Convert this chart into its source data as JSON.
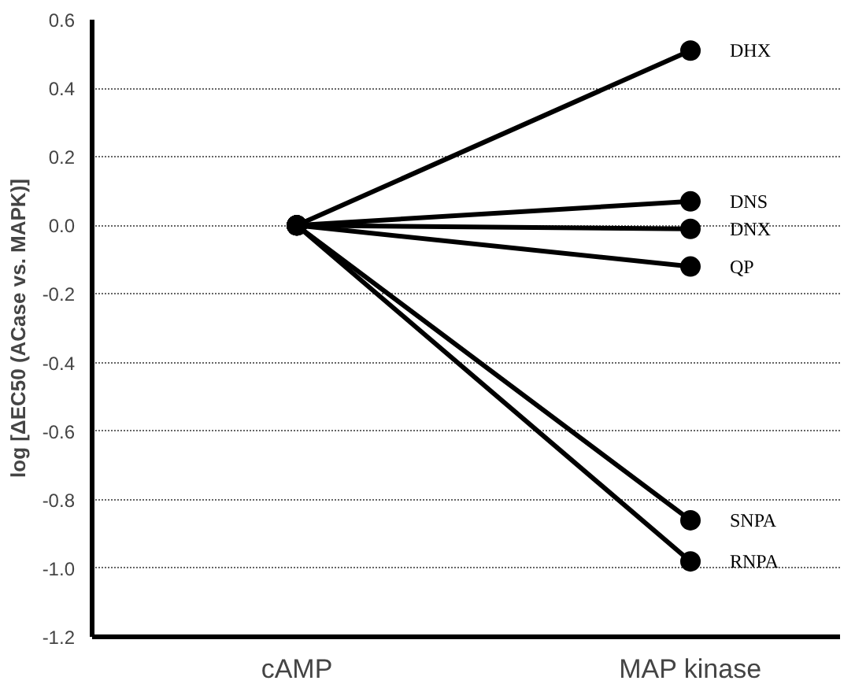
{
  "chart_data": {
    "type": "line",
    "ylabel": "log [ΔEC50 (ACase vs. MAPK)]",
    "categories": [
      "cAMP",
      "MAP kinase"
    ],
    "ylim": [
      -1.2,
      0.6
    ],
    "yticks": [
      {
        "value": 0.6,
        "label": "0.6"
      },
      {
        "value": 0.4,
        "label": "0.4"
      },
      {
        "value": 0.2,
        "label": "0.2"
      },
      {
        "value": 0,
        "label": "0.0"
      },
      {
        "value": -0.2,
        "label": "-0.2"
      },
      {
        "value": -0.4,
        "label": "-0.4"
      },
      {
        "value": -0.6,
        "label": "-0.6"
      },
      {
        "value": -0.8,
        "label": "-0.8"
      },
      {
        "value": -1.0,
        "label": "-1.0"
      },
      {
        "value": -1.2,
        "label": "-1.2"
      }
    ],
    "grid": "y",
    "marker": "circle",
    "line_style": "solid",
    "series": [
      {
        "name": "DHX",
        "color": "#000000",
        "values": [
          0,
          0.51
        ]
      },
      {
        "name": "DNS",
        "color": "#000000",
        "values": [
          0,
          0.07
        ]
      },
      {
        "name": "DNX",
        "color": "#000000",
        "values": [
          0,
          -0.01
        ]
      },
      {
        "name": "QP",
        "color": "#000000",
        "values": [
          0,
          -0.12
        ]
      },
      {
        "name": "SNPA",
        "color": "#000000",
        "values": [
          0,
          -0.86
        ]
      },
      {
        "name": "RNPA",
        "color": "#000000",
        "values": [
          0,
          -0.98
        ]
      }
    ]
  }
}
